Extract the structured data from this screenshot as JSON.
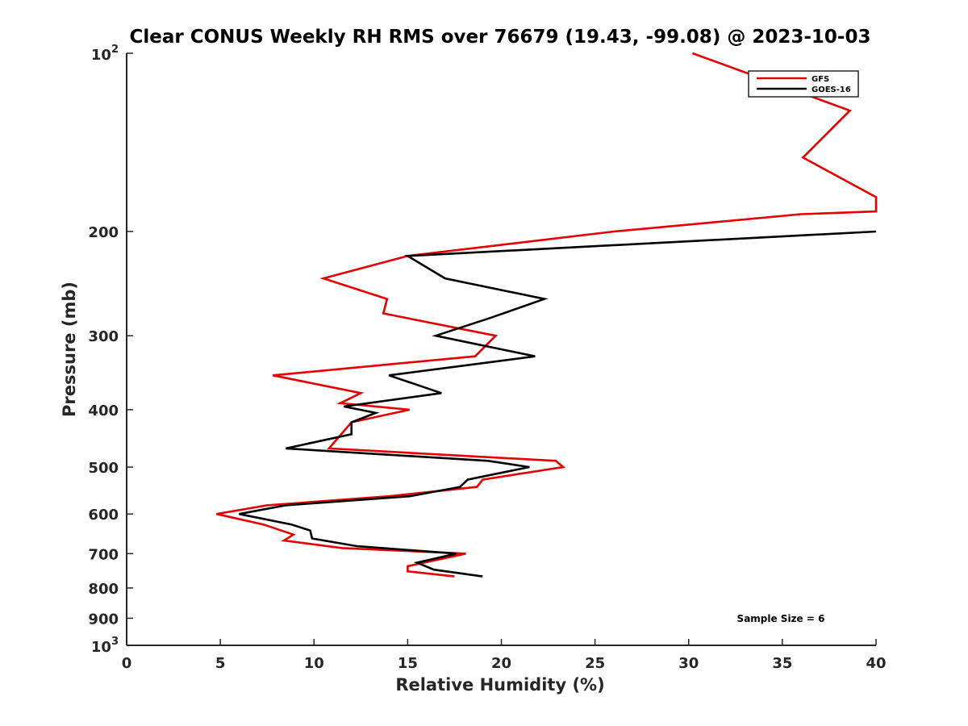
{
  "chart_data": {
    "type": "line",
    "title": "Clear CONUS Weekly RH RMS over 76679 (19.43, -99.08) @ 2023-10-03",
    "xlabel": "Relative Humidity (%)",
    "ylabel": "Pressure (mb)",
    "xlim": [
      0,
      40
    ],
    "ylim": [
      100,
      1000
    ],
    "y_scale": "log",
    "y_reversed": true,
    "grid": false,
    "legend_position": "top-right",
    "x_ticks": [
      0,
      5,
      10,
      15,
      20,
      25,
      30,
      35,
      40
    ],
    "y_ticks": [
      {
        "value": 100,
        "base": "10",
        "exp": "2"
      },
      {
        "value": 200,
        "label": "200"
      },
      {
        "value": 300,
        "label": "300"
      },
      {
        "value": 400,
        "label": "400"
      },
      {
        "value": 500,
        "label": "500"
      },
      {
        "value": 600,
        "label": "600"
      },
      {
        "value": 700,
        "label": "700"
      },
      {
        "value": 800,
        "label": "800"
      },
      {
        "value": 900,
        "label": "900"
      },
      {
        "value": 1000,
        "base": "10",
        "exp": "3"
      }
    ],
    "series": [
      {
        "name": "GFS",
        "color": "#e60000",
        "points": [
          [
            30.2,
            100
          ],
          [
            38.6,
            125
          ],
          [
            36.1,
            150
          ],
          [
            40.0,
            175
          ],
          [
            40.0,
            175
          ],
          [
            40.0,
            185
          ],
          [
            36.0,
            187
          ],
          [
            26.0,
            200
          ],
          [
            15.0,
            220
          ],
          [
            10.5,
            240
          ],
          [
            13.9,
            260
          ],
          [
            13.7,
            275
          ],
          [
            19.7,
            300
          ],
          [
            18.6,
            325
          ],
          [
            7.8,
            350
          ],
          [
            12.5,
            375
          ],
          [
            11.4,
            390
          ],
          [
            15.1,
            400
          ],
          [
            12.0,
            420
          ],
          [
            10.8,
            465
          ],
          [
            22.9,
            488
          ],
          [
            23.3,
            500
          ],
          [
            19.0,
            525
          ],
          [
            18.7,
            540
          ],
          [
            14.0,
            560
          ],
          [
            7.5,
            580
          ],
          [
            4.8,
            600
          ],
          [
            7.3,
            625
          ],
          [
            8.9,
            650
          ],
          [
            8.4,
            665
          ],
          [
            11.5,
            685
          ],
          [
            18.1,
            700
          ],
          [
            15.0,
            735
          ],
          [
            15.0,
            750
          ],
          [
            17.5,
            765
          ]
        ]
      },
      {
        "name": "GOES-16",
        "color": "#000000",
        "points": [
          [
            40.0,
            200
          ],
          [
            15.0,
            220
          ],
          [
            17.0,
            240
          ],
          [
            22.3,
            260
          ],
          [
            19.4,
            280
          ],
          [
            16.5,
            300
          ],
          [
            21.8,
            325
          ],
          [
            14.0,
            350
          ],
          [
            16.8,
            375
          ],
          [
            11.6,
            395
          ],
          [
            13.3,
            405
          ],
          [
            12.0,
            420
          ],
          [
            12.0,
            440
          ],
          [
            8.5,
            465
          ],
          [
            19.3,
            488
          ],
          [
            21.5,
            500
          ],
          [
            18.2,
            525
          ],
          [
            17.8,
            540
          ],
          [
            15.1,
            560
          ],
          [
            8.5,
            580
          ],
          [
            6.0,
            600
          ],
          [
            8.8,
            625
          ],
          [
            9.8,
            640
          ],
          [
            9.9,
            660
          ],
          [
            12.3,
            680
          ],
          [
            17.6,
            700
          ],
          [
            15.5,
            725
          ],
          [
            16.4,
            745
          ],
          [
            19.0,
            765
          ]
        ]
      }
    ],
    "annotations": [
      "Sample Size = 6"
    ]
  }
}
